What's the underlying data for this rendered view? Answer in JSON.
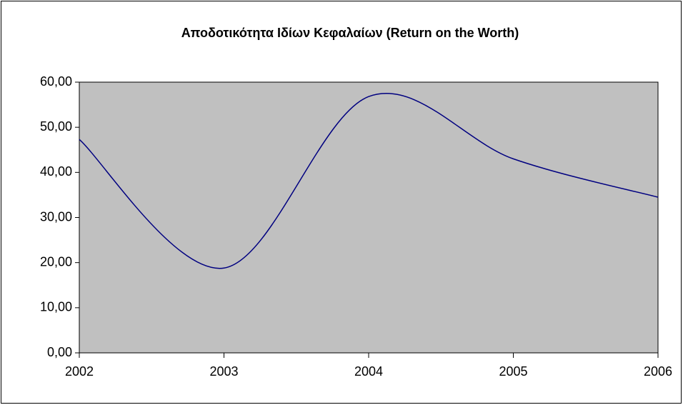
{
  "chart_data": {
    "type": "line",
    "title": "Αποδοτικότητα Ιδίων Κεφαλαίων (Return on the Worth)",
    "x": [
      2002,
      2003,
      2004,
      2005,
      2006
    ],
    "series": [
      {
        "name": "Return on the Worth",
        "color": "#000080",
        "values": [
          47.3,
          18.8,
          56.8,
          43.0,
          34.5
        ]
      }
    ],
    "xlim": [
      2002,
      2006
    ],
    "xticks": [
      2002,
      2003,
      2004,
      2005,
      2006
    ],
    "ylim": [
      0,
      60
    ],
    "yticks": [
      {
        "value": 0,
        "label": "0,00"
      },
      {
        "value": 10,
        "label": "10,00"
      },
      {
        "value": 20,
        "label": "20,00"
      },
      {
        "value": 30,
        "label": "30,00"
      },
      {
        "value": 40,
        "label": "40,00"
      },
      {
        "value": 50,
        "label": "50,00"
      },
      {
        "value": 60,
        "label": "60,00"
      }
    ],
    "plot_background": "#c0c0c0",
    "smooth": true
  }
}
